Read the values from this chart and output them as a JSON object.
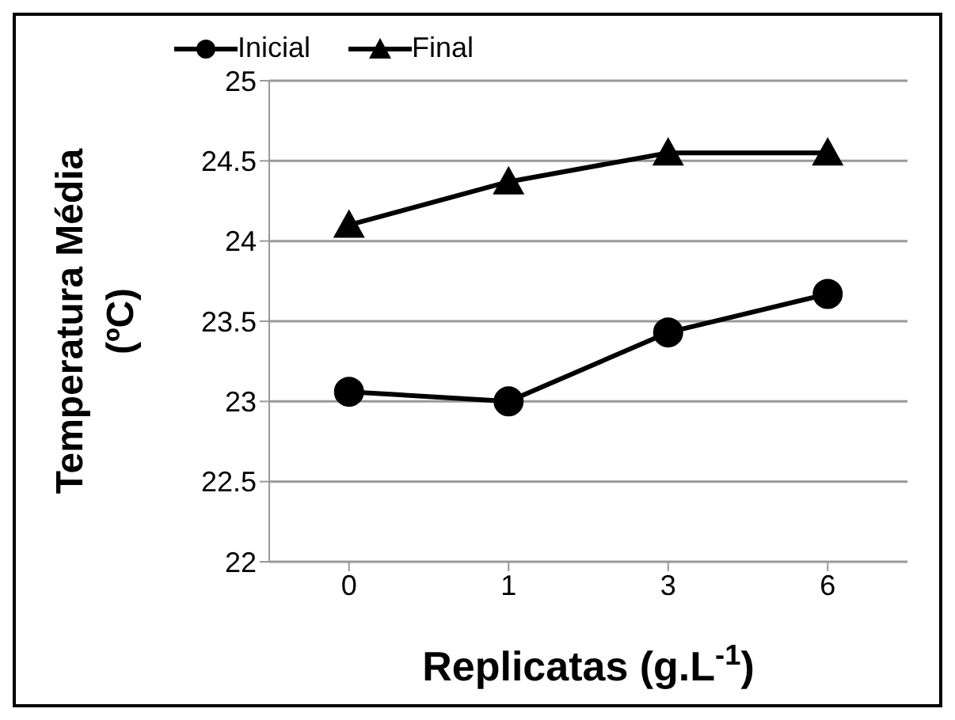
{
  "chart_data": {
    "type": "line",
    "xlabel": "Replicatas (g.L$^{-1}$)",
    "ylabel": "Temperatura Média (ºC)",
    "categories": [
      "0",
      "1",
      "3",
      "6"
    ],
    "series": [
      {
        "name": "Inicial",
        "color": "#000000",
        "marker": "circle",
        "values": [
          23.06,
          23.0,
          23.43,
          23.67
        ]
      },
      {
        "name": "Final",
        "color": "#000000",
        "marker": "triangle",
        "values": [
          24.1,
          24.37,
          24.55,
          24.55
        ]
      }
    ],
    "ylim": [
      22,
      25
    ],
    "yticks": [
      22,
      22.5,
      23,
      23.5,
      24,
      24.5,
      25
    ],
    "grid": "y",
    "legend": "top"
  }
}
